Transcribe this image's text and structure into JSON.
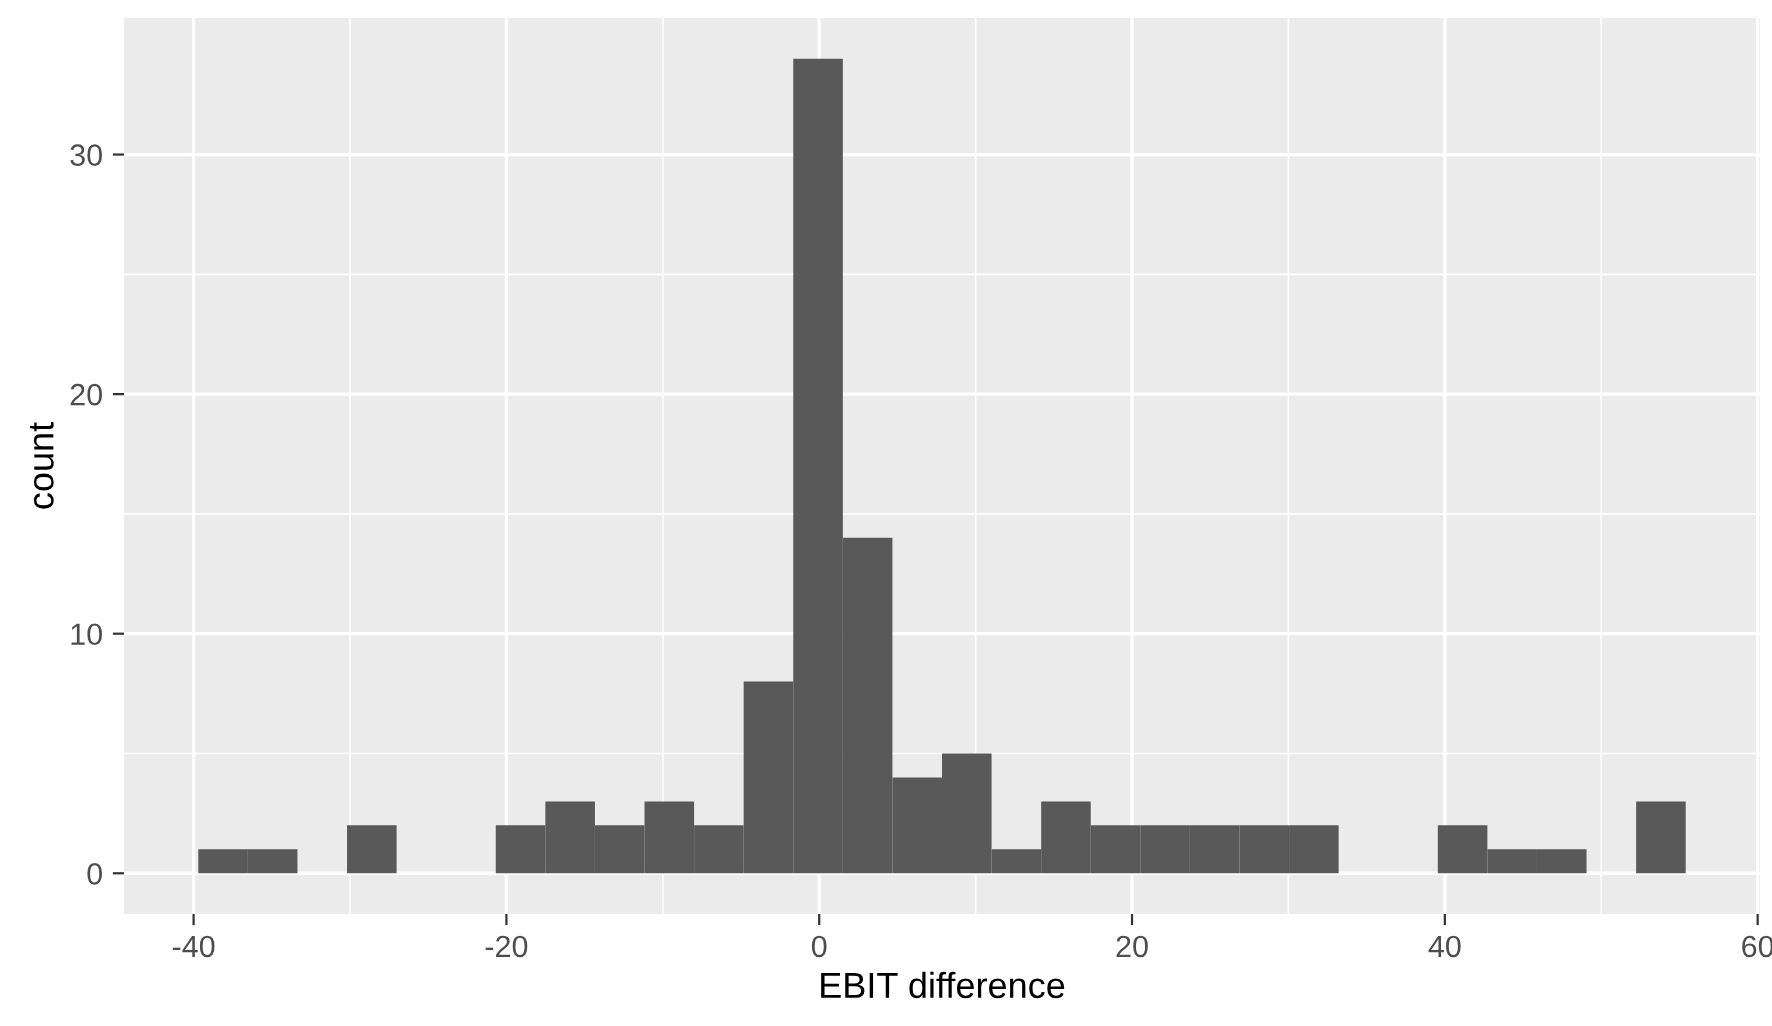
{
  "chart_data": {
    "type": "histogram",
    "xlabel": "EBIT difference",
    "ylabel": "count",
    "bins": [
      -39.7,
      -36.53,
      -33.36,
      -30.19,
      -27.02,
      -23.85,
      -20.68,
      -17.51,
      -14.34,
      -11.17,
      -8.0,
      -4.83,
      -1.66,
      1.51,
      4.68,
      7.85,
      11.02,
      14.19,
      17.36,
      20.53,
      23.7,
      26.87,
      30.04,
      33.21,
      36.38,
      39.55,
      42.72,
      45.89,
      49.06,
      52.23,
      55.4
    ],
    "values": [
      1,
      1,
      0,
      2,
      0,
      0,
      2,
      3,
      2,
      3,
      2,
      8,
      34,
      14,
      4,
      5,
      1,
      3,
      2,
      2,
      2,
      2,
      2,
      0,
      0,
      2,
      1,
      1,
      0,
      3
    ],
    "color": "#595959",
    "xlim": [
      -44.45,
      60.15
    ],
    "ylim": [
      -1.7,
      35.7
    ],
    "xticks": [
      -40,
      -20,
      0,
      20,
      40,
      60
    ],
    "yticks": [
      0,
      10,
      20,
      30
    ],
    "grid": true
  }
}
